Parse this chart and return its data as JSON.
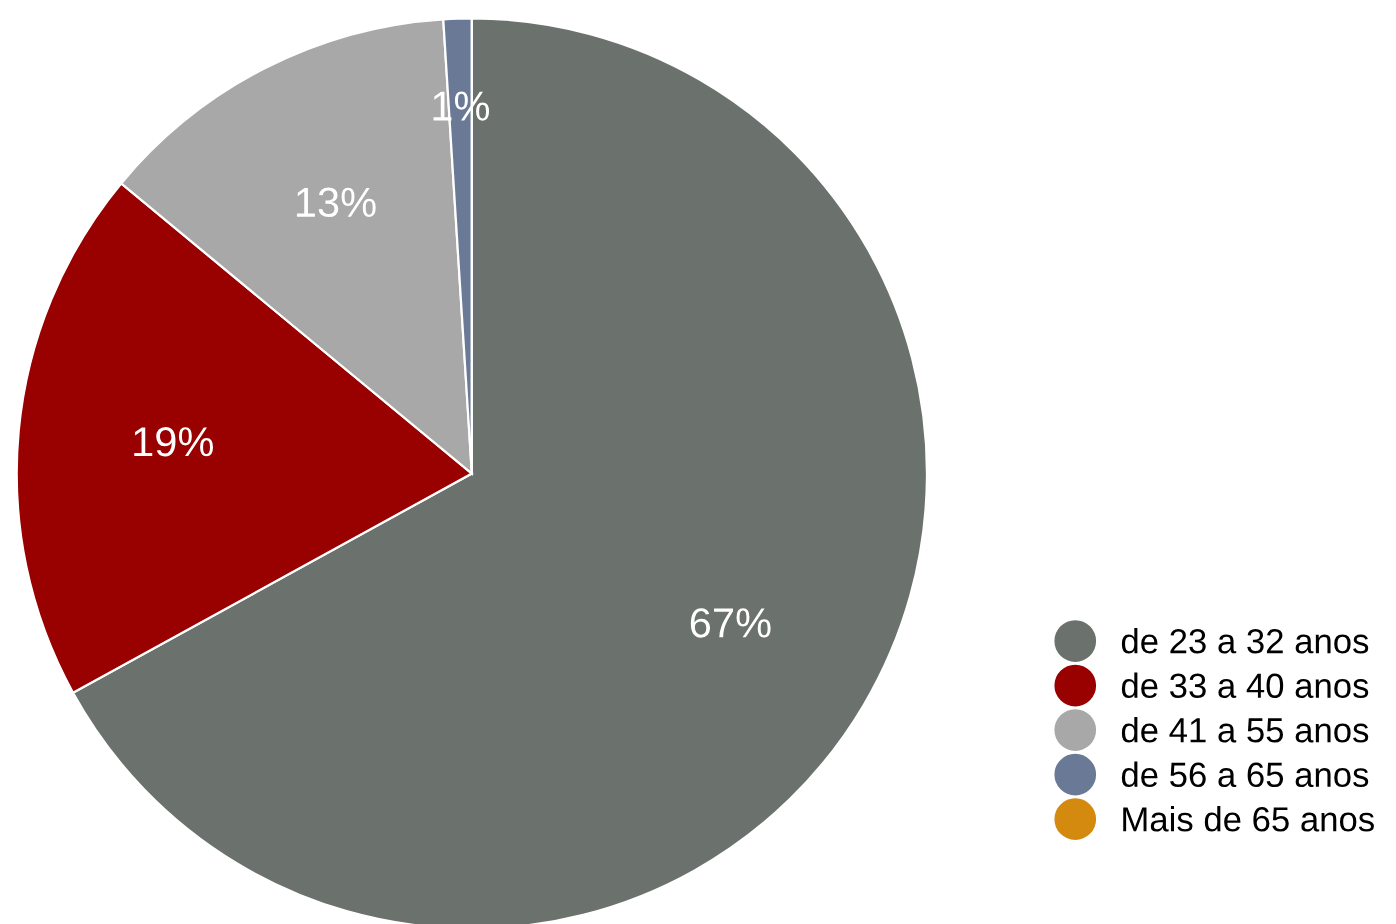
{
  "chart_data": {
    "type": "pie",
    "categories": [
      "de 23 a 32 anos",
      "de 33 a 40 anos",
      "de 41 a 55 anos",
      "de 56 a 65 anos",
      "Mais de 65 anos"
    ],
    "values": [
      67,
      19,
      13,
      1,
      0
    ],
    "colors": [
      "#6b716c",
      "#990000",
      "#a8a8a8",
      "#6a7a96",
      "#d4890f"
    ],
    "value_labels": [
      "67%",
      "19%",
      "13%",
      "1%",
      null
    ],
    "legend": "bottom right"
  }
}
